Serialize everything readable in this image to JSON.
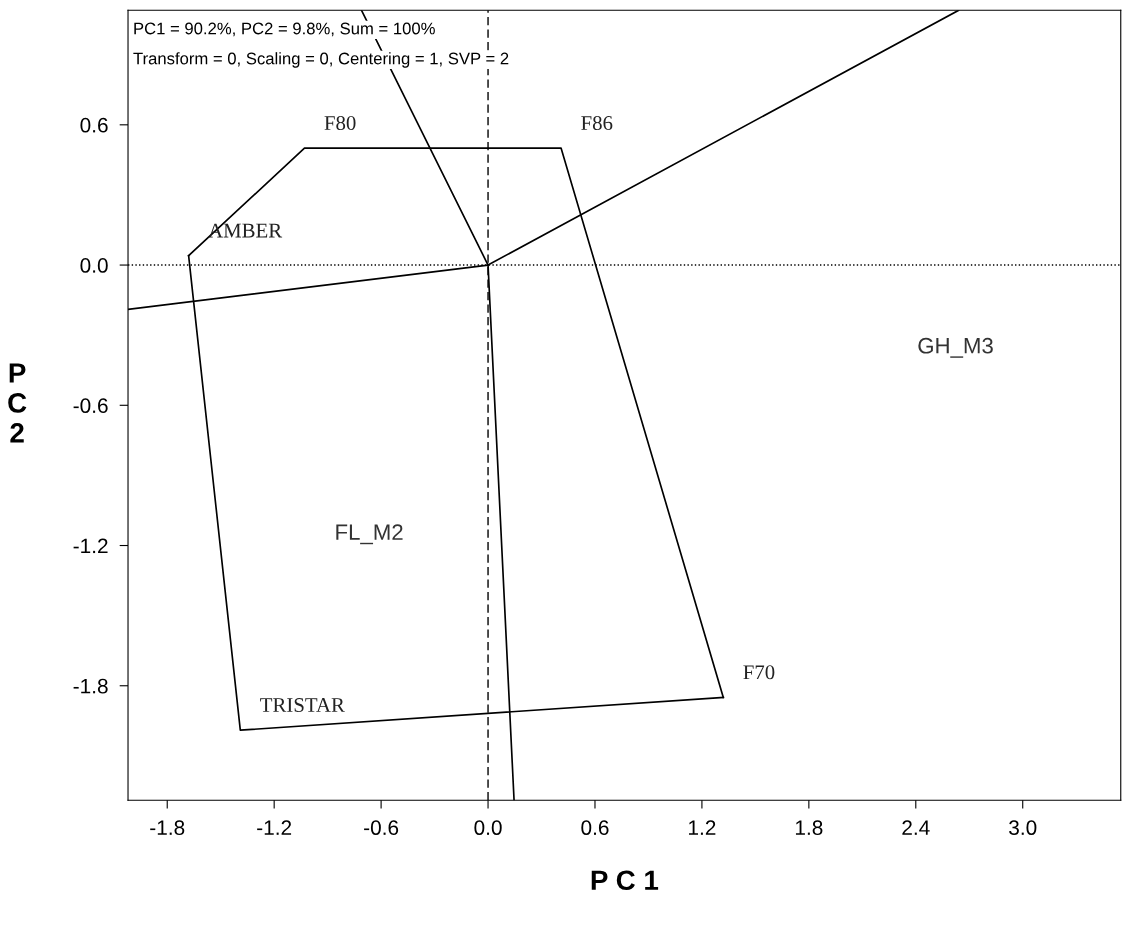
{
  "chart_data": {
    "type": "line",
    "xlabel": "P C 1",
    "ylabel": "PC2",
    "xlim": [
      -2.02,
      3.55
    ],
    "ylim": [
      -2.29,
      1.09
    ],
    "xticks": [
      {
        "value": -1.8,
        "label": "-1.8"
      },
      {
        "value": -1.2,
        "label": "-1.2"
      },
      {
        "value": -0.6,
        "label": "-0.6"
      },
      {
        "value": 0,
        "label": "0.0"
      },
      {
        "value": 0.6,
        "label": "0.6"
      },
      {
        "value": 1.2,
        "label": "1.2"
      },
      {
        "value": 1.8,
        "label": "1.8"
      },
      {
        "value": 2.4,
        "label": "2.4"
      },
      {
        "value": 3.0,
        "label": "3.0"
      }
    ],
    "yticks": [
      {
        "value": 0.6,
        "label": "0.6"
      },
      {
        "value": 0,
        "label": "0.0"
      },
      {
        "value": -0.6,
        "label": "-0.6"
      },
      {
        "value": -1.2,
        "label": "-1.2"
      },
      {
        "value": -1.8,
        "label": "-1.8"
      }
    ],
    "grid": false,
    "legend": false,
    "marker": "none",
    "line_style": "solid",
    "series": [
      {
        "color": "#000000",
        "x": [
          -1.68,
          -1.03,
          0.41,
          1.32
        ],
        "values": [
          0.04,
          0.5,
          0.5,
          -1.85
        ]
      },
      {
        "color": "#000000",
        "x": [
          -1.68,
          -1.39,
          1.32
        ],
        "values": [
          0.04,
          -1.99,
          -1.85
        ]
      },
      {
        "color": "#000000",
        "x": [
          -0.71,
          0,
          0.146
        ],
        "values": [
          1.09,
          0,
          -2.29
        ]
      },
      {
        "color": "#000000",
        "x": [
          -2.02,
          0,
          2.64
        ],
        "values": [
          -0.19,
          0,
          1.09
        ]
      }
    ],
    "ref_lines": [
      {
        "axis": "x",
        "value": 0,
        "line_style": "dashed",
        "color": "#000000"
      },
      {
        "axis": "y",
        "value": 0,
        "line_style": "dotted",
        "color": "#000000"
      }
    ],
    "annotations": [
      "PC1 = 90.2%, PC2 = 9.8%, Sum = 100%",
      "Transform = 0, Scaling = 0, Centering = 1, SVP = 2",
      {
        "text": "F80",
        "x": -1.03,
        "y": 0.5
      },
      {
        "text": "F86",
        "x": 0.41,
        "y": 0.5
      },
      {
        "text": "AMBER",
        "x": -1.68,
        "y": 0.04
      },
      {
        "text": "TRISTAR",
        "x": -1.39,
        "y": -1.99
      },
      {
        "text": "F70",
        "x": 1.32,
        "y": -1.85
      },
      "GH_M3",
      "FL_M2"
    ]
  }
}
